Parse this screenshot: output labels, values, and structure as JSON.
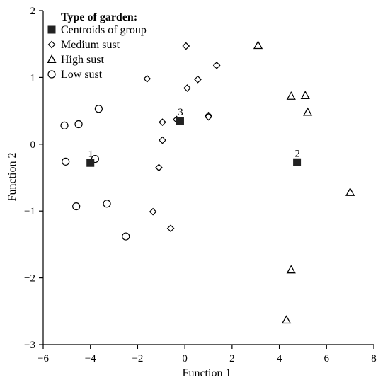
{
  "chart_data": {
    "type": "scatter",
    "xlabel": "Function 1",
    "ylabel": "Function 2",
    "xlim": [
      -6,
      8
    ],
    "ylim": [
      -3,
      2
    ],
    "xticks": [
      -6,
      -4,
      -2,
      0,
      2,
      4,
      6,
      8
    ],
    "yticks": [
      -3,
      -2,
      -1,
      0,
      1,
      2
    ],
    "xtick_labels": [
      "−6",
      "−4",
      "−2",
      "0",
      "2",
      "4",
      "6",
      "8"
    ],
    "ytick_labels": [
      "−3",
      "−2",
      "−1",
      "0",
      "1",
      "2"
    ],
    "legend_placement": "top-left",
    "legend_title": "Type of garden:",
    "series": [
      {
        "name": "Centroids of group",
        "marker": "filled-square",
        "points": [
          {
            "x": -4.0,
            "y": -0.28,
            "label": "1"
          },
          {
            "x": 4.75,
            "y": -0.27,
            "label": "2"
          },
          {
            "x": -0.2,
            "y": 0.35,
            "label": "3"
          }
        ]
      },
      {
        "name": "Medium sust",
        "marker": "open-diamond",
        "points": [
          {
            "x": 0.05,
            "y": 1.47
          },
          {
            "x": 1.35,
            "y": 1.18
          },
          {
            "x": -1.6,
            "y": 0.98
          },
          {
            "x": 0.55,
            "y": 0.97
          },
          {
            "x": 0.1,
            "y": 0.84
          },
          {
            "x": 1.0,
            "y": 0.43
          },
          {
            "x": 1.0,
            "y": 0.41
          },
          {
            "x": -0.35,
            "y": 0.37
          },
          {
            "x": -0.95,
            "y": 0.33
          },
          {
            "x": -0.95,
            "y": 0.06
          },
          {
            "x": -1.1,
            "y": -0.35
          },
          {
            "x": -1.35,
            "y": -1.01
          },
          {
            "x": -0.6,
            "y": -1.26
          }
        ]
      },
      {
        "name": "High sust",
        "marker": "open-triangle",
        "points": [
          {
            "x": 3.1,
            "y": 1.48
          },
          {
            "x": 4.5,
            "y": 0.72
          },
          {
            "x": 5.1,
            "y": 0.73
          },
          {
            "x": 5.2,
            "y": 0.48
          },
          {
            "x": 7.0,
            "y": -0.72
          },
          {
            "x": 4.5,
            "y": -1.88
          },
          {
            "x": 4.3,
            "y": -2.63
          }
        ]
      },
      {
        "name": "Low sust",
        "marker": "open-circle",
        "points": [
          {
            "x": -3.65,
            "y": 0.53
          },
          {
            "x": -5.1,
            "y": 0.28
          },
          {
            "x": -4.5,
            "y": 0.3
          },
          {
            "x": -3.8,
            "y": -0.22
          },
          {
            "x": -5.05,
            "y": -0.26
          },
          {
            "x": -4.6,
            "y": -0.93
          },
          {
            "x": -3.3,
            "y": -0.89
          },
          {
            "x": -2.5,
            "y": -1.38
          }
        ]
      }
    ]
  }
}
